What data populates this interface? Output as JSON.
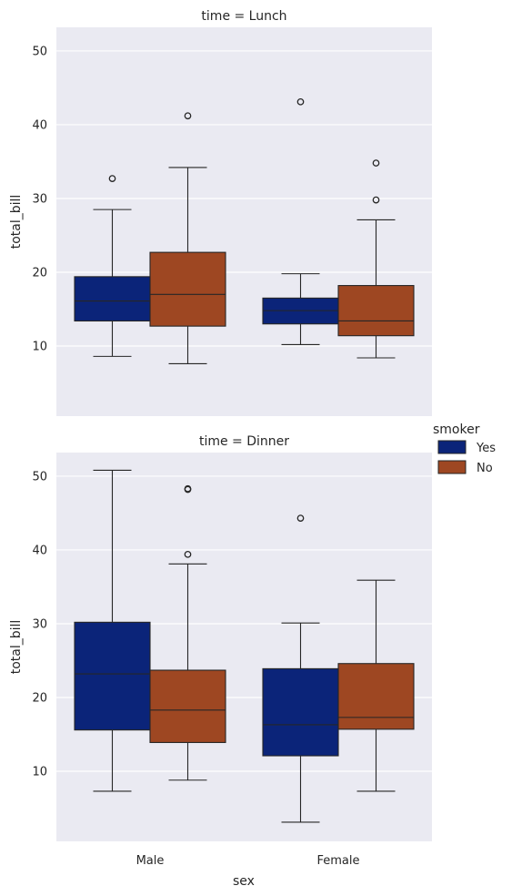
{
  "chart_data": {
    "type": "box",
    "xlabel": "sex",
    "ylabel": "total_bill",
    "categories": [
      "Male",
      "Female"
    ],
    "yticks": [
      10,
      20,
      30,
      40,
      50
    ],
    "ylim": [
      0.5,
      53.2
    ],
    "grid": true,
    "legend": {
      "title": "smoker",
      "placement": "right",
      "entries": [
        {
          "name": "Yes",
          "color": "#0b2479"
        },
        {
          "name": "No",
          "color": "#9e4722"
        }
      ]
    },
    "panels": [
      {
        "title": "time = Lunch",
        "boxes": [
          {
            "category": "Male",
            "hue": "Yes",
            "whisker_low": 8.6,
            "q1": 13.4,
            "median": 16.1,
            "q3": 19.4,
            "whisker_high": 28.5,
            "outliers": [
              32.7
            ]
          },
          {
            "category": "Male",
            "hue": "No",
            "whisker_low": 7.6,
            "q1": 12.7,
            "median": 17.0,
            "q3": 22.7,
            "whisker_high": 34.2,
            "outliers": [
              41.2
            ]
          },
          {
            "category": "Female",
            "hue": "Yes",
            "whisker_low": 10.2,
            "q1": 13.0,
            "median": 14.8,
            "q3": 16.5,
            "whisker_high": 19.8,
            "outliers": [
              43.1
            ]
          },
          {
            "category": "Female",
            "hue": "No",
            "whisker_low": 8.4,
            "q1": 11.4,
            "median": 13.4,
            "q3": 18.2,
            "whisker_high": 27.1,
            "outliers": [
              29.8,
              34.8
            ]
          }
        ]
      },
      {
        "title": "time = Dinner",
        "boxes": [
          {
            "category": "Male",
            "hue": "Yes",
            "whisker_low": 7.3,
            "q1": 15.6,
            "median": 23.2,
            "q3": 30.2,
            "whisker_high": 50.8,
            "outliers": []
          },
          {
            "category": "Male",
            "hue": "No",
            "whisker_low": 8.8,
            "q1": 13.9,
            "median": 18.3,
            "q3": 23.7,
            "whisker_high": 38.1,
            "outliers": [
              39.4,
              48.2,
              48.3
            ]
          },
          {
            "category": "Female",
            "hue": "Yes",
            "whisker_low": 3.1,
            "q1": 12.1,
            "median": 16.3,
            "q3": 23.9,
            "whisker_high": 30.1,
            "outliers": [
              44.3
            ]
          },
          {
            "category": "Female",
            "hue": "No",
            "whisker_low": 7.3,
            "q1": 15.7,
            "median": 17.3,
            "q3": 24.6,
            "whisker_high": 35.9,
            "outliers": []
          }
        ]
      }
    ]
  }
}
